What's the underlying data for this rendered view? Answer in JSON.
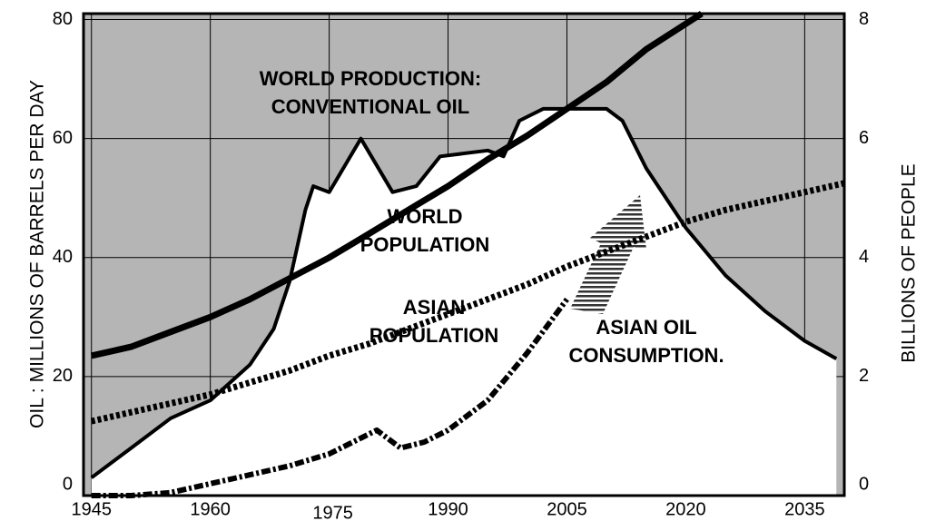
{
  "chart_data": {
    "type": "line",
    "y_axis_label": "OIL : MILLIONS OF BARRELS PER DAY",
    "y2_axis_label": "BILLIONS OF PEOPLE",
    "xlim": [
      1944,
      2040
    ],
    "xticks": [
      1945,
      1960,
      1975,
      1990,
      2005,
      2020,
      2035
    ],
    "ylim": [
      0,
      81
    ],
    "yticks": [
      0,
      20,
      40,
      60,
      80
    ],
    "y2lim": [
      0,
      8.1
    ],
    "y2ticks": [
      0,
      2,
      4,
      6,
      8
    ],
    "grid": true,
    "series": [
      {
        "color": "#000000",
        "style": "area",
        "axis": "y",
        "x": [
          1945,
          1950,
          1955,
          1960,
          1965,
          1968,
          1970,
          1972,
          1973,
          1975,
          1979,
          1983,
          1986,
          1989,
          1995,
          1997,
          1999,
          2002,
          2010,
          2012,
          2015,
          2020,
          2025,
          2030,
          2035,
          2039
        ],
        "values": [
          3,
          8,
          13,
          16,
          22,
          28,
          36,
          48,
          52,
          51,
          60,
          51,
          52,
          57,
          58,
          57,
          63,
          65,
          65,
          63,
          55,
          45,
          37,
          31,
          26,
          23
        ]
      },
      {
        "color": "#000000",
        "style": "solid",
        "axis": "y2",
        "x": [
          1945,
          1950,
          1955,
          1960,
          1965,
          1970,
          1975,
          1980,
          1985,
          1990,
          1995,
          2000,
          2005,
          2010,
          2015,
          2022
        ],
        "values": [
          2.35,
          2.5,
          2.75,
          3.0,
          3.3,
          3.65,
          4.0,
          4.4,
          4.8,
          5.2,
          5.65,
          6.05,
          6.5,
          6.95,
          7.5,
          8.1
        ]
      },
      {
        "color": "#000000",
        "style": "dashed",
        "axis": "y2",
        "x": [
          1945,
          1950,
          1955,
          1960,
          1965,
          1970,
          1975,
          1980,
          1985,
          1990,
          1995,
          2000,
          2005,
          2010,
          2015,
          2020,
          2025,
          2030,
          2035,
          2040
        ],
        "values": [
          1.25,
          1.4,
          1.55,
          1.7,
          1.9,
          2.1,
          2.35,
          2.55,
          2.8,
          3.05,
          3.3,
          3.55,
          3.85,
          4.1,
          4.35,
          4.6,
          4.8,
          4.95,
          5.1,
          5.25
        ]
      },
      {
        "color": "#000000",
        "style": "dashdot",
        "axis": "y",
        "x": [
          1945,
          1950,
          1955,
          1960,
          1965,
          1970,
          1975,
          1978,
          1981,
          1984,
          1987,
          1990,
          1995,
          2000,
          2005
        ],
        "values": [
          0,
          0,
          0.5,
          2,
          3.5,
          5,
          7,
          9,
          11,
          8,
          9,
          11,
          16,
          24,
          33
        ]
      }
    ],
    "annotations": [
      {
        "text": [
          "WORLD PRODUCTION:",
          "CONVENTIONAL OIL"
        ]
      },
      {
        "text": [
          "WORLD",
          "POPULATION"
        ]
      },
      {
        "text": [
          "ASIAN",
          "POPULATION"
        ]
      },
      {
        "text": [
          "ASIAN OIL",
          "CONSUMPTION."
        ]
      }
    ]
  }
}
